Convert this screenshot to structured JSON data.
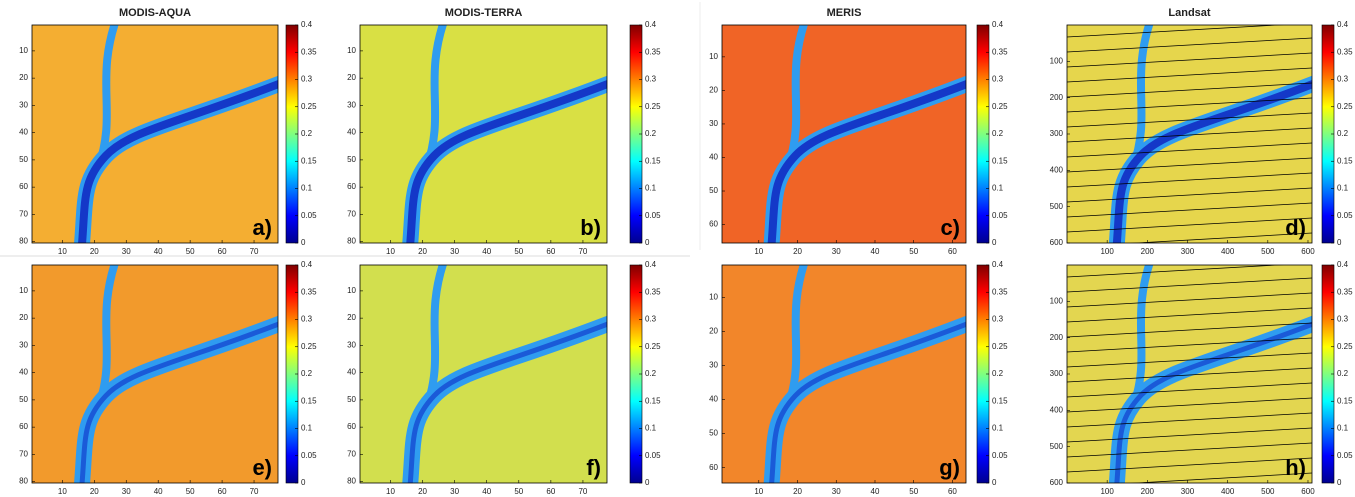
{
  "chart_data": [
    {
      "type": "heatmap",
      "title": "MODIS-AQUA",
      "label": "a)",
      "xlim": [
        0.5,
        77.5
      ],
      "ylim": [
        0.5,
        80.5
      ],
      "xticks": [
        10,
        20,
        30,
        40,
        50,
        60,
        70
      ],
      "yticks": [
        10,
        20,
        30,
        40,
        50,
        60,
        70,
        80
      ],
      "clim": [
        0,
        0.4
      ],
      "cticks": [
        0,
        0.05,
        0.1,
        0.15,
        0.2,
        0.25,
        0.3,
        0.35,
        0.4
      ],
      "colormap": "jet",
      "color": "#f4ae32"
    },
    {
      "type": "heatmap",
      "title": "MODIS-TERRA",
      "label": "b)",
      "xlim": [
        0.5,
        77.5
      ],
      "ylim": [
        0.5,
        80.5
      ],
      "xticks": [
        10,
        20,
        30,
        40,
        50,
        60,
        70
      ],
      "yticks": [
        10,
        20,
        30,
        40,
        50,
        60,
        70,
        80
      ],
      "clim": [
        0,
        0.4
      ],
      "cticks": [
        0,
        0.05,
        0.1,
        0.15,
        0.2,
        0.25,
        0.3,
        0.35,
        0.4
      ],
      "colormap": "jet",
      "color": "#d9e044"
    },
    {
      "type": "heatmap",
      "title": "MERIS",
      "label": "c)",
      "xlim": [
        0.5,
        63.5
      ],
      "ylim": [
        0.5,
        65.5
      ],
      "xticks": [
        10,
        20,
        30,
        40,
        50,
        60
      ],
      "yticks": [
        10,
        20,
        30,
        40,
        50,
        60
      ],
      "clim": [
        0,
        0.4
      ],
      "cticks": [
        0,
        0.05,
        0.1,
        0.15,
        0.2,
        0.25,
        0.3,
        0.35,
        0.4
      ],
      "colormap": "jet",
      "color": "#f06426"
    },
    {
      "type": "heatmap",
      "title": "Landsat",
      "label": "d)",
      "xlim": [
        0,
        610
      ],
      "ylim": [
        0,
        600
      ],
      "xticks": [
        100,
        200,
        300,
        400,
        500,
        600
      ],
      "yticks": [
        100,
        200,
        300,
        400,
        500,
        600
      ],
      "clim": [
        0,
        0.4
      ],
      "cticks": [
        0,
        0.05,
        0.1,
        0.15,
        0.2,
        0.25,
        0.3,
        0.35,
        0.4
      ],
      "colormap": "jet",
      "color": "#e6d64c",
      "stripes": true
    },
    {
      "type": "heatmap",
      "label": "e)",
      "xlim": [
        0.5,
        77.5
      ],
      "ylim": [
        0.5,
        80.5
      ],
      "xticks": [
        10,
        20,
        30,
        40,
        50,
        60,
        70
      ],
      "yticks": [
        10,
        20,
        30,
        40,
        50,
        60,
        70,
        80
      ],
      "clim": [
        0,
        0.4
      ],
      "cticks": [
        0,
        0.05,
        0.1,
        0.15,
        0.2,
        0.25,
        0.3,
        0.35,
        0.4
      ],
      "colormap": "jet",
      "color": "#f29a2c"
    },
    {
      "type": "heatmap",
      "label": "f)",
      "xlim": [
        0.5,
        77.5
      ],
      "ylim": [
        0.5,
        80.5
      ],
      "xticks": [
        10,
        20,
        30,
        40,
        50,
        60,
        70
      ],
      "yticks": [
        10,
        20,
        30,
        40,
        50,
        60,
        70,
        80
      ],
      "clim": [
        0,
        0.4
      ],
      "cticks": [
        0,
        0.05,
        0.1,
        0.15,
        0.2,
        0.25,
        0.3,
        0.35,
        0.4
      ],
      "colormap": "jet",
      "color": "#d2df4e"
    },
    {
      "type": "heatmap",
      "label": "g)",
      "xlim": [
        0.5,
        63.5
      ],
      "ylim": [
        0.5,
        64.5
      ],
      "xticks": [
        10,
        20,
        30,
        40,
        50,
        60
      ],
      "yticks": [
        10,
        20,
        30,
        40,
        50,
        60
      ],
      "clim": [
        0,
        0.4
      ],
      "cticks": [
        0,
        0.05,
        0.1,
        0.15,
        0.2,
        0.25,
        0.3,
        0.35,
        0.4
      ],
      "colormap": "jet",
      "color": "#f2862a"
    },
    {
      "type": "heatmap",
      "label": "h)",
      "xlim": [
        0,
        610
      ],
      "ylim": [
        0,
        600
      ],
      "xticks": [
        100,
        200,
        300,
        400,
        500,
        600
      ],
      "yticks": [
        100,
        200,
        300,
        400,
        500,
        600
      ],
      "clim": [
        0,
        0.4
      ],
      "cticks": [
        0,
        0.05,
        0.1,
        0.15,
        0.2,
        0.25,
        0.3,
        0.35,
        0.4
      ],
      "colormap": "jet",
      "color": "#e3d650",
      "stripes": true
    }
  ]
}
